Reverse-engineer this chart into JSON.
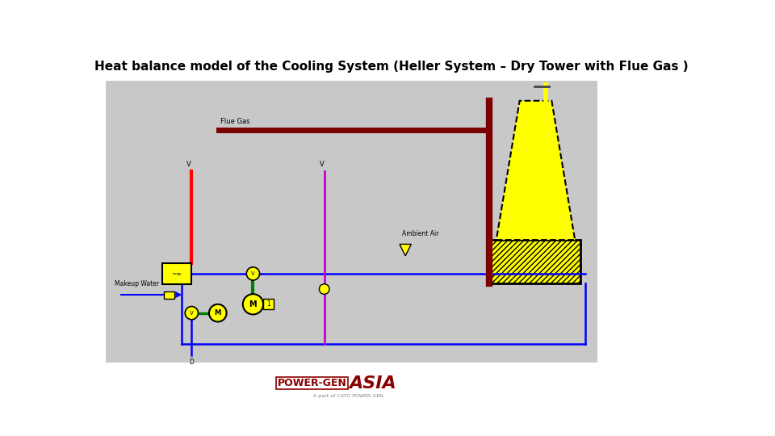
{
  "title": "Heat balance model of the Cooling System (Heller System – Dry Tower with Flue Gas )",
  "title_fontsize": 11,
  "bg_color": "#c8c8c8",
  "flue_gas_label": "Flue Gas",
  "ambient_air_label": "Ambient Air",
  "makeup_water_label": "Makeup Water"
}
